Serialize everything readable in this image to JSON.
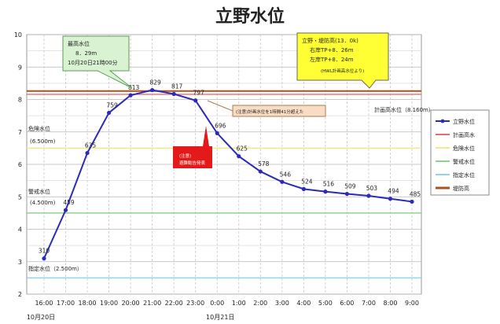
{
  "chart_data": {
    "type": "line",
    "title": "立野水位",
    "ylim": [
      2,
      10
    ],
    "y_ticks": [
      "2",
      "3",
      "4",
      "5",
      "6",
      "7",
      "8",
      "9",
      "10"
    ],
    "categories": [
      "16:00",
      "17:00",
      "18:00",
      "19:00",
      "20:00",
      "21:00",
      "22:00",
      "23:00",
      "0:00",
      "1:00",
      "2:00",
      "3:00",
      "4:00",
      "5:00",
      "6:00",
      "7:00",
      "8:00",
      "9:00"
    ],
    "date_labels": [
      {
        "text": "10月20日",
        "at": "16:00"
      },
      {
        "text": "10月21日",
        "at": "0:00"
      }
    ],
    "grid": true,
    "series": [
      {
        "name": "立野水位",
        "color": "#2b2bb8",
        "values": [
          3.1,
          4.59,
          6.35,
          7.59,
          8.13,
          8.29,
          8.17,
          7.97,
          6.96,
          6.25,
          5.78,
          5.46,
          5.24,
          5.16,
          5.09,
          5.03,
          4.94,
          4.85
        ],
        "labels": [
          "310",
          "459",
          "635",
          "759",
          "813",
          "829",
          "817",
          "797",
          "696",
          "625",
          "578",
          "546",
          "524",
          "516",
          "509",
          "503",
          "494",
          "485"
        ]
      }
    ],
    "reference_lines": [
      {
        "name": "計画高水",
        "value": 8.16,
        "color": "#e07070"
      },
      {
        "name": "危険水位",
        "value": 6.5,
        "color": "#f3e98c"
      },
      {
        "name": "警戒水位",
        "value": 4.5,
        "color": "#8ed48e"
      },
      {
        "name": "指定水位",
        "value": 2.5,
        "color": "#8fd6e8"
      },
      {
        "name": "堤防高",
        "value": 8.26,
        "color": "#b0501e"
      }
    ],
    "level_labels": [
      {
        "text": "危険水位",
        "sub": "(6.500m)"
      },
      {
        "text": "警戒水位",
        "sub": "(4.500m)"
      },
      {
        "text": "指定水位（2.500m）",
        "sub": ""
      },
      {
        "text": "計画高水位（8.160m）",
        "sub": ""
      }
    ],
    "legend": {
      "placement": "right",
      "entries": [
        "立野水位",
        "計画高水",
        "危険水位",
        "警戒水位",
        "指定水位",
        "堤防高"
      ]
    },
    "annotations": {
      "peak": {
        "line1": "最高水位",
        "line2": "8．29m",
        "line3": "10月20日21時00分"
      },
      "levee": {
        "line1": "立野・堤防高(13．0k)",
        "line2": "右岸TP+8．26m",
        "line3": "左岸TP+8．24m",
        "line4": "(HWL計画高水位より)"
      },
      "mid": "(注意)計画水位を1時間41分超えた",
      "red": "(注意)\n避難勧告発表"
    }
  }
}
